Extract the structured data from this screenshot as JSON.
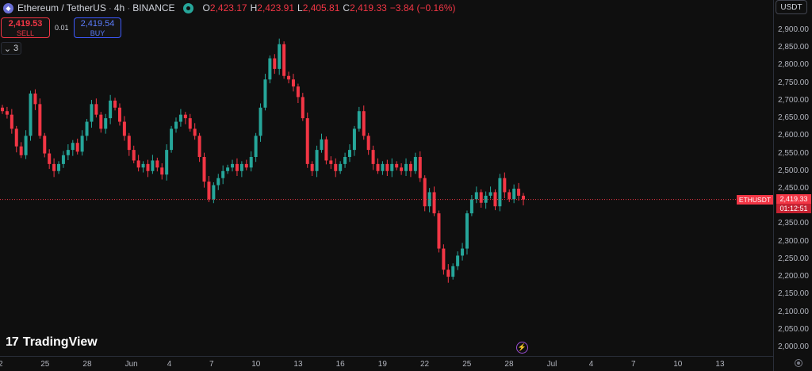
{
  "header": {
    "symbol_icon": "ethereum-icon",
    "symbol": "Ethereum / TetherUS",
    "interval": "4h",
    "exchange": "BINANCE",
    "ohlc": {
      "o_label": "O",
      "o": "2,423.17",
      "h_label": "H",
      "h": "2,423.91",
      "l_label": "L",
      "l": "2,405.81",
      "c_label": "C",
      "c": "2,419.33",
      "change": "−3.84 (−0.16%)"
    }
  },
  "trade": {
    "sell_price": "2,419.53",
    "sell_label": "SELL",
    "spread": "0.01",
    "buy_price": "2,419.54",
    "buy_label": "BUY"
  },
  "indicators_toggle": {
    "icon": "chevron-down-icon",
    "count": "3"
  },
  "currency_button": "USDT",
  "last_price": {
    "symbol": "ETHUSDT",
    "price": "2,419.33",
    "countdown": "01:12:51"
  },
  "branding": "TradingView",
  "colors": {
    "up": "#26a69a",
    "down": "#f23645",
    "background": "#0f0f0f",
    "accent": "#3d5afe"
  },
  "chart_data": {
    "type": "candlestick",
    "y_axis_ticks": [
      "2,900.00",
      "2,850.00",
      "2,800.00",
      "2,750.00",
      "2,700.00",
      "2,650.00",
      "2,600.00",
      "2,550.00",
      "2,500.00",
      "2,450.00",
      "2,400.00",
      "2,350.00",
      "2,300.00",
      "2,250.00",
      "2,200.00",
      "2,150.00",
      "2,100.00",
      "2,050.00",
      "2,000.00"
    ],
    "x_axis_ticks": [
      "2",
      "25",
      "28",
      "Jun",
      "4",
      "7",
      "10",
      "13",
      "16",
      "19",
      "22",
      "25",
      "28",
      "Jul",
      "4",
      "7",
      "10",
      "13"
    ],
    "ylim": [
      1980,
      2925
    ],
    "current_price": 2419.33,
    "series": [
      {
        "x": "May 22",
        "close": 2670
      },
      {
        "x": "May 22",
        "close": 2660
      },
      {
        "x": "May 23",
        "close": 2620
      },
      {
        "x": "May 23",
        "close": 2570
      },
      {
        "x": "May 23",
        "close": 2545
      },
      {
        "x": "May 24",
        "close": 2600
      },
      {
        "x": "May 24",
        "close": 2720
      },
      {
        "x": "May 24",
        "close": 2690
      },
      {
        "x": "May 25",
        "close": 2600
      },
      {
        "x": "May 25",
        "close": 2550
      },
      {
        "x": "May 25",
        "close": 2520
      },
      {
        "x": "May 26",
        "close": 2500
      },
      {
        "x": "May 26",
        "close": 2520
      },
      {
        "x": "May 26",
        "close": 2545
      },
      {
        "x": "May 27",
        "close": 2560
      },
      {
        "x": "May 27",
        "close": 2580
      },
      {
        "x": "May 27",
        "close": 2555
      },
      {
        "x": "May 28",
        "close": 2600
      },
      {
        "x": "May 28",
        "close": 2640
      },
      {
        "x": "May 28",
        "close": 2690
      },
      {
        "x": "May 29",
        "close": 2660
      },
      {
        "x": "May 29",
        "close": 2620
      },
      {
        "x": "May 29",
        "close": 2650
      },
      {
        "x": "May 30",
        "close": 2700
      },
      {
        "x": "May 30",
        "close": 2680
      },
      {
        "x": "May 30",
        "close": 2640
      },
      {
        "x": "May 31",
        "close": 2600
      },
      {
        "x": "May 31",
        "close": 2560
      },
      {
        "x": "May 31",
        "close": 2530
      },
      {
        "x": "Jun 1",
        "close": 2510
      },
      {
        "x": "Jun 1",
        "close": 2520
      },
      {
        "x": "Jun 1",
        "close": 2500
      },
      {
        "x": "Jun 2",
        "close": 2530
      },
      {
        "x": "Jun 2",
        "close": 2510
      },
      {
        "x": "Jun 2",
        "close": 2490
      },
      {
        "x": "Jun 3",
        "close": 2560
      },
      {
        "x": "Jun 3",
        "close": 2620
      },
      {
        "x": "Jun 3",
        "close": 2640
      },
      {
        "x": "Jun 4",
        "close": 2660
      },
      {
        "x": "Jun 4",
        "close": 2650
      },
      {
        "x": "Jun 4",
        "close": 2620
      },
      {
        "x": "Jun 5",
        "close": 2600
      },
      {
        "x": "Jun 5",
        "close": 2540
      },
      {
        "x": "Jun 5",
        "close": 2470
      },
      {
        "x": "Jun 6",
        "close": 2420
      },
      {
        "x": "Jun 6",
        "close": 2460
      },
      {
        "x": "Jun 6",
        "close": 2480
      },
      {
        "x": "Jun 7",
        "close": 2500
      },
      {
        "x": "Jun 7",
        "close": 2510
      },
      {
        "x": "Jun 7",
        "close": 2520
      },
      {
        "x": "Jun 8",
        "close": 2500
      },
      {
        "x": "Jun 8",
        "close": 2520
      },
      {
        "x": "Jun 8",
        "close": 2510
      },
      {
        "x": "Jun 9",
        "close": 2540
      },
      {
        "x": "Jun 9",
        "close": 2600
      },
      {
        "x": "Jun 9",
        "close": 2680
      },
      {
        "x": "Jun 10",
        "close": 2760
      },
      {
        "x": "Jun 10",
        "close": 2820
      },
      {
        "x": "Jun 10",
        "close": 2790
      },
      {
        "x": "Jun 11",
        "close": 2860
      },
      {
        "x": "Jun 11",
        "close": 2770
      },
      {
        "x": "Jun 11",
        "close": 2760
      },
      {
        "x": "Jun 12",
        "close": 2740
      },
      {
        "x": "Jun 12",
        "close": 2710
      },
      {
        "x": "Jun 12",
        "close": 2650
      },
      {
        "x": "Jun 13",
        "close": 2520
      },
      {
        "x": "Jun 13",
        "close": 2500
      },
      {
        "x": "Jun 13",
        "close": 2560
      },
      {
        "x": "Jun 14",
        "close": 2590
      },
      {
        "x": "Jun 14",
        "close": 2530
      },
      {
        "x": "Jun 14",
        "close": 2520
      },
      {
        "x": "Jun 15",
        "close": 2500
      },
      {
        "x": "Jun 15",
        "close": 2520
      },
      {
        "x": "Jun 15",
        "close": 2540
      },
      {
        "x": "Jun 16",
        "close": 2560
      },
      {
        "x": "Jun 16",
        "close": 2620
      },
      {
        "x": "Jun 16",
        "close": 2670
      },
      {
        "x": "Jun 17",
        "close": 2600
      },
      {
        "x": "Jun 17",
        "close": 2560
      },
      {
        "x": "Jun 17",
        "close": 2520
      },
      {
        "x": "Jun 18",
        "close": 2500
      },
      {
        "x": "Jun 18",
        "close": 2520
      },
      {
        "x": "Jun 18",
        "close": 2500
      },
      {
        "x": "Jun 19",
        "close": 2520
      },
      {
        "x": "Jun 19",
        "close": 2510
      },
      {
        "x": "Jun 19",
        "close": 2500
      },
      {
        "x": "Jun 20",
        "close": 2520
      },
      {
        "x": "Jun 20",
        "close": 2500
      },
      {
        "x": "Jun 20",
        "close": 2540
      },
      {
        "x": "Jun 21",
        "close": 2480
      },
      {
        "x": "Jun 21",
        "close": 2400
      },
      {
        "x": "Jun 21",
        "close": 2440
      },
      {
        "x": "Jun 22",
        "close": 2380
      },
      {
        "x": "Jun 22",
        "close": 2280
      },
      {
        "x": "Jun 22",
        "close": 2220
      },
      {
        "x": "Jun 23",
        "close": 2200
      },
      {
        "x": "Jun 23",
        "close": 2230
      },
      {
        "x": "Jun 23",
        "close": 2260
      },
      {
        "x": "Jun 24",
        "close": 2280
      },
      {
        "x": "Jun 24",
        "close": 2380
      },
      {
        "x": "Jun 24",
        "close": 2420
      },
      {
        "x": "Jun 25",
        "close": 2440
      },
      {
        "x": "Jun 25",
        "close": 2410
      },
      {
        "x": "Jun 25",
        "close": 2430
      },
      {
        "x": "Jun 26",
        "close": 2440
      },
      {
        "x": "Jun 26",
        "close": 2400
      },
      {
        "x": "Jun 26",
        "close": 2480
      },
      {
        "x": "Jun 27",
        "close": 2440
      },
      {
        "x": "Jun 27",
        "close": 2420
      },
      {
        "x": "Jun 27",
        "close": 2450
      },
      {
        "x": "Jun 28",
        "close": 2430
      },
      {
        "x": "Jun 28",
        "close": 2419.33
      }
    ]
  }
}
